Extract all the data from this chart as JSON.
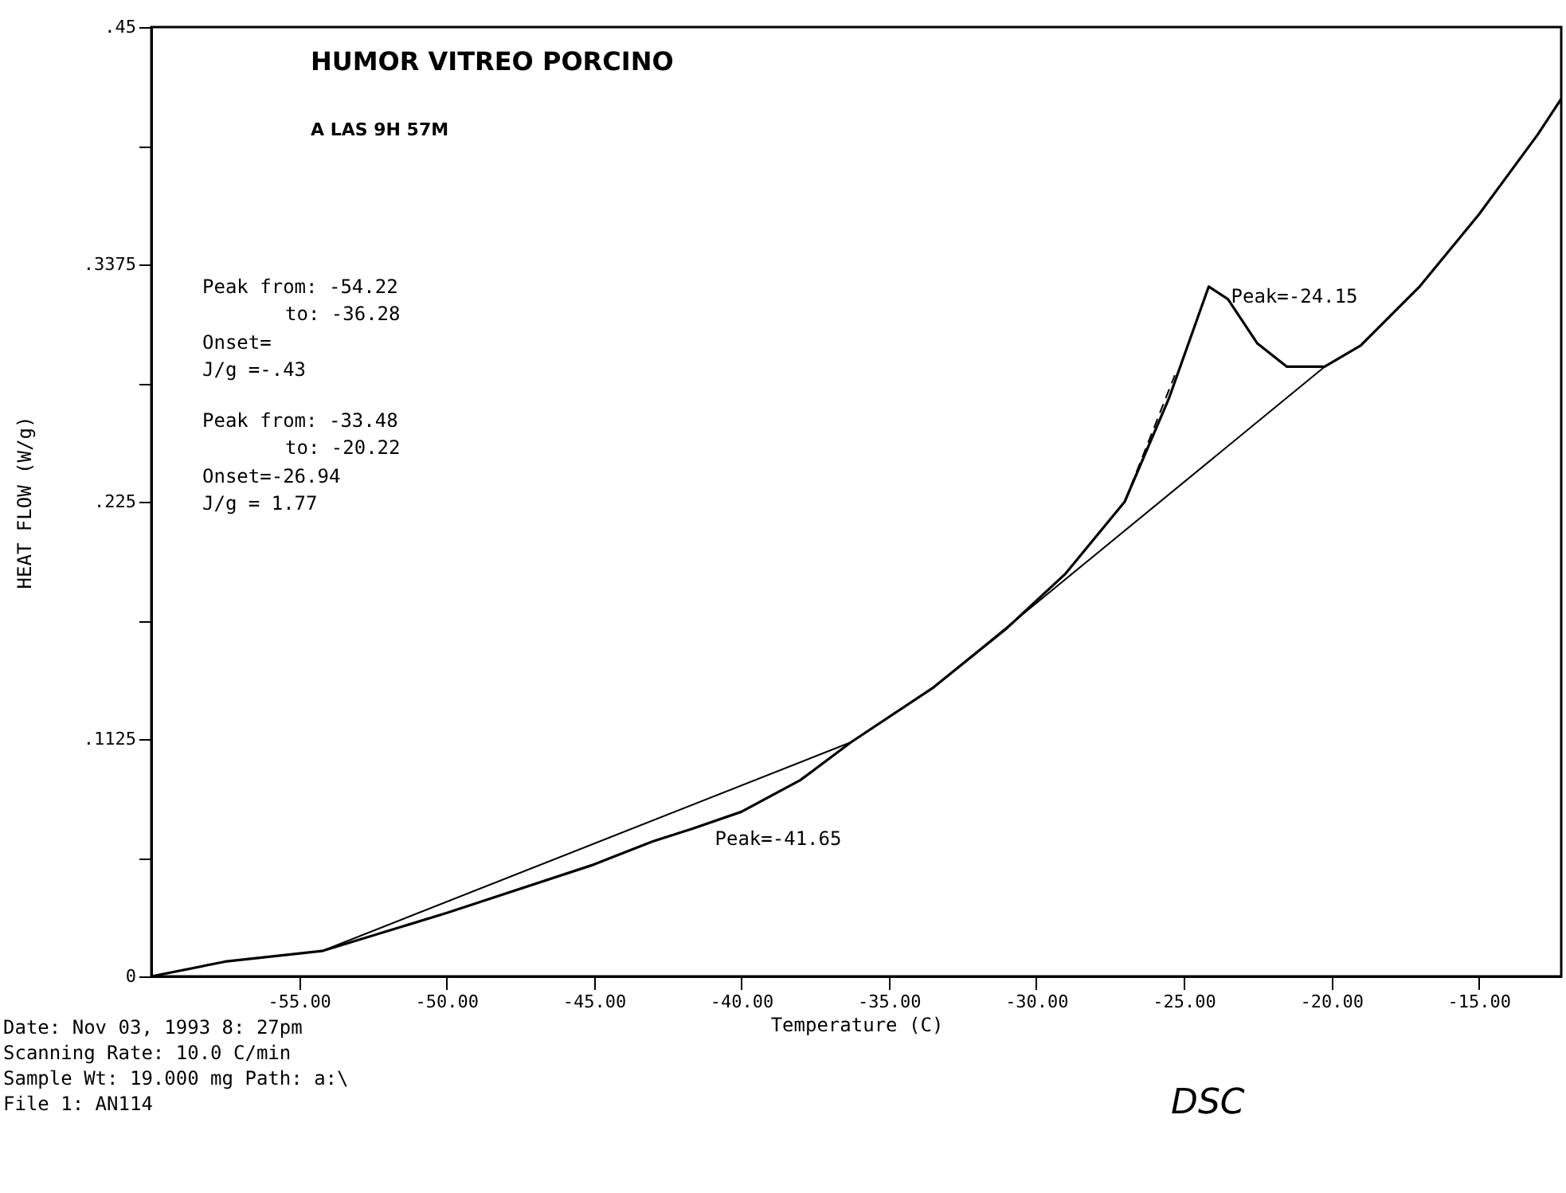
{
  "chart_data": {
    "type": "line",
    "title": "HUMOR VITREO PORCINO",
    "subtitle": "A LAS 9H 57M",
    "xlabel": "Temperature (C)",
    "ylabel": "HEAT FLOW (W/g)",
    "xlim": [
      -60,
      -12.2
    ],
    "ylim": [
      0,
      0.45
    ],
    "xticks": [
      {
        "value": -55,
        "label": "-55.00"
      },
      {
        "value": -50,
        "label": "-50.00"
      },
      {
        "value": -45,
        "label": "-45.00"
      },
      {
        "value": -40,
        "label": "-40.00"
      },
      {
        "value": -35,
        "label": "-35.00"
      },
      {
        "value": -30,
        "label": "-30.00"
      },
      {
        "value": -25,
        "label": "-25.00"
      },
      {
        "value": -20,
        "label": "-20.00"
      },
      {
        "value": -15,
        "label": "-15.00"
      }
    ],
    "yticks": [
      0,
      {
        "value": 0.05625,
        "label": null
      },
      {
        "value": 0.1125,
        "label": ".1125"
      },
      {
        "value": 0.16875,
        "label": null
      },
      {
        "value": 0.225,
        "label": ".225"
      },
      {
        "value": 0.28125,
        "label": null
      },
      {
        "value": 0.3375,
        "label": ".3375"
      },
      {
        "value": 0.39375,
        "label": null
      },
      {
        "value": 0.45,
        "label": ".45"
      }
    ],
    "grid": false,
    "series": [
      {
        "color": "#000000",
        "line_style": "solid",
        "x": [
          -60,
          -57.5,
          -54.22,
          -50,
          -45,
          -43,
          -41.65,
          -40,
          -38,
          -36.28,
          -33.48,
          -31,
          -29,
          -27,
          -25.5,
          -24.15,
          -23.5,
          -22.5,
          -21.5,
          -20.22,
          -19,
          -17,
          -15,
          -13,
          -12.2
        ],
        "values": [
          0,
          0.007,
          0.012,
          0.03,
          0.053,
          0.064,
          0.07,
          0.078,
          0.093,
          0.111,
          0.137,
          0.165,
          0.191,
          0.225,
          0.274,
          0.327,
          0.321,
          0.3,
          0.289,
          0.289,
          0.299,
          0.327,
          0.361,
          0.399,
          0.416
        ]
      },
      {
        "color": "#000000",
        "line_style": "solid",
        "x": [
          -54.22,
          -36.28
        ],
        "values": [
          0.012,
          0.111
        ]
      },
      {
        "color": "#000000",
        "line_style": "solid",
        "x": [
          -33.48,
          -20.22
        ],
        "values": [
          0.137,
          0.289
        ]
      },
      {
        "color": "#000000",
        "line_style": "dashed",
        "x": [
          -27,
          -25.3
        ],
        "values": [
          0.225,
          0.285
        ]
      }
    ],
    "annotations": [
      "Peak from: -54.22",
      "to: -36.28",
      "Onset=",
      "J/g =-.43",
      "Peak from: -33.48",
      "to: -20.22",
      "Onset=-26.94",
      "J/g = 1.77",
      {
        "text": "Peak=-41.65",
        "x": -41.65,
        "y": 0.07
      },
      {
        "text": "Peak=-24.15",
        "x": -24.15,
        "y": 0.327
      },
      "Date: Nov 03, 1993   8: 27pm",
      "Scanning Rate:   10.0 C/min",
      "Sample Wt:  19.000 mg Path: a:\\",
      "File 1: AN114",
      "DSC"
    ]
  }
}
